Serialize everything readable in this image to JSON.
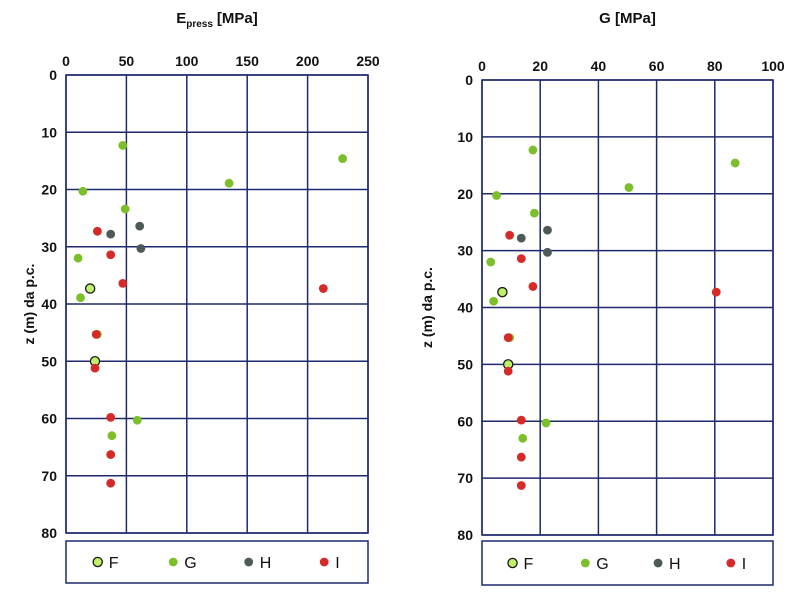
{
  "colors": {
    "grid": "#1f2a6e",
    "F_fill": "#bff06a",
    "F_stroke": "#1a1a1a",
    "G": "#7cbf2a",
    "H": "#4d5a57",
    "I": "#d62a28"
  },
  "chart_data": [
    {
      "type": "scatter",
      "title_main": "E",
      "title_sub": "press",
      "title_unit": "[MPa]",
      "xlabel": "",
      "ylabel": "z (m) da p.c.",
      "xlim": [
        0,
        250
      ],
      "ylim": [
        0,
        80
      ],
      "x_reversed": false,
      "y_reversed": true,
      "x_axis_position": "top",
      "x_ticks": [
        "0",
        "50",
        "100",
        "150",
        "200",
        "250"
      ],
      "y_ticks": [
        "0",
        "10",
        "20",
        "30",
        "40",
        "50",
        "60",
        "70",
        "80"
      ],
      "grid": true,
      "legend_position": "bottom",
      "series": [
        {
          "name": "F",
          "points": [
            [
              20,
              37.3
            ],
            [
              24,
              50.0
            ]
          ]
        },
        {
          "name": "G",
          "points": [
            [
              47,
              12.3
            ],
            [
              229,
              14.6
            ],
            [
              135,
              18.9
            ],
            [
              14,
              20.3
            ],
            [
              49,
              23.4
            ],
            [
              10,
              32.0
            ],
            [
              12,
              38.9
            ],
            [
              26,
              45.3
            ],
            [
              59,
              60.3
            ],
            [
              38,
              63.0
            ]
          ]
        },
        {
          "name": "H",
          "points": [
            [
              61,
              26.4
            ],
            [
              37,
              27.8
            ],
            [
              62,
              30.3
            ]
          ]
        },
        {
          "name": "I",
          "points": [
            [
              26,
              27.3
            ],
            [
              37,
              31.4
            ],
            [
              47,
              36.4
            ],
            [
              213,
              37.3
            ],
            [
              25,
              45.3
            ],
            [
              24,
              51.2
            ],
            [
              37,
              59.8
            ],
            [
              37,
              66.3
            ],
            [
              37,
              71.3
            ]
          ]
        }
      ]
    },
    {
      "type": "scatter",
      "title_main": "G [MPa]",
      "title_sub": "",
      "title_unit": "",
      "xlabel": "",
      "ylabel": "z (m) da p.c.",
      "xlim": [
        0,
        100
      ],
      "ylim": [
        0,
        80
      ],
      "x_reversed": false,
      "y_reversed": true,
      "x_axis_position": "top",
      "x_ticks": [
        "0",
        "20",
        "40",
        "60",
        "80",
        "100"
      ],
      "y_ticks": [
        "0",
        "10",
        "20",
        "30",
        "40",
        "50",
        "60",
        "70",
        "80"
      ],
      "grid": true,
      "legend_position": "bottom",
      "series": [
        {
          "name": "F",
          "points": [
            [
              7,
              37.3
            ],
            [
              9,
              50.0
            ]
          ]
        },
        {
          "name": "G",
          "points": [
            [
              17.5,
              12.3
            ],
            [
              87,
              14.6
            ],
            [
              50.5,
              18.9
            ],
            [
              5,
              20.3
            ],
            [
              18,
              23.4
            ],
            [
              3,
              32.0
            ],
            [
              4,
              38.9
            ],
            [
              9.5,
              45.3
            ],
            [
              22,
              60.3
            ],
            [
              14,
              63.0
            ]
          ]
        },
        {
          "name": "H",
          "points": [
            [
              22.5,
              26.4
            ],
            [
              13.5,
              27.8
            ],
            [
              22.5,
              30.3
            ]
          ]
        },
        {
          "name": "I",
          "points": [
            [
              9.5,
              27.3
            ],
            [
              13.5,
              31.4
            ],
            [
              17.5,
              36.3
            ],
            [
              80.5,
              37.3
            ],
            [
              9,
              45.3
            ],
            [
              9,
              51.2
            ],
            [
              13.5,
              59.8
            ],
            [
              13.5,
              66.3
            ],
            [
              13.5,
              71.3
            ]
          ]
        }
      ]
    }
  ]
}
